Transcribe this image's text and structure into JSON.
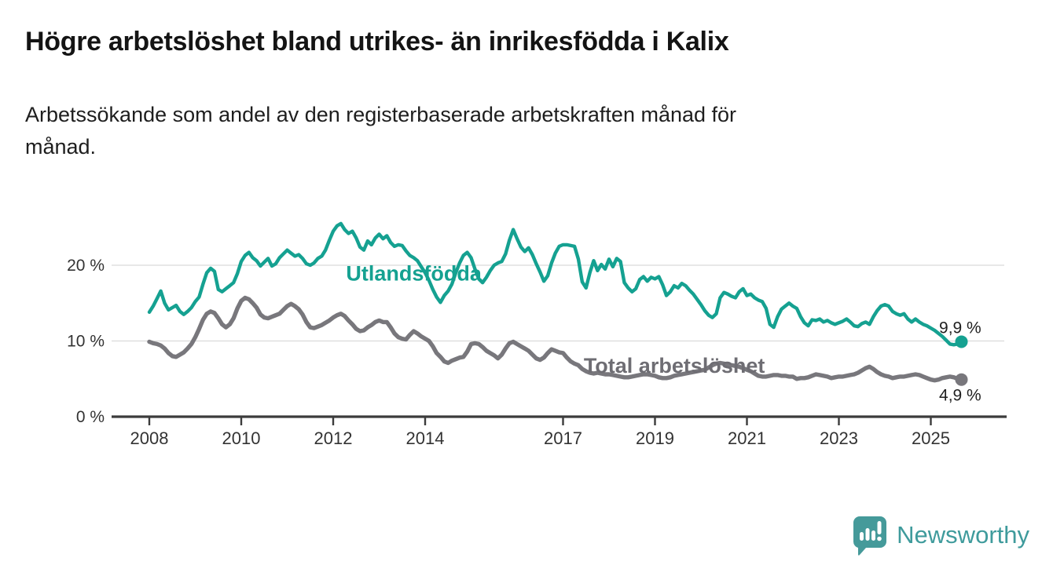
{
  "page": {
    "title": "Högre arbetslöshet bland utrikes- än inrikesfödda i Kalix",
    "subtitle_lines": [
      "Arbetssökande som andel av den registerbaserade arbetskraften månad för",
      "månad."
    ]
  },
  "chart_data": {
    "type": "line",
    "title": "Högre arbetslöshet bland utrikes- än inrikesfödda i Kalix",
    "subtitle": "Arbetssökande som andel av den registerbaserade arbetskraften månad för månad.",
    "x_unit": "monthly observations",
    "x_start_year": 2008,
    "points_per_year": 12,
    "xlim": [
      2007.2,
      2026.3
    ],
    "ylim": [
      0,
      27.5
    ],
    "grid": true,
    "x_ticks": [
      {
        "value": 2008,
        "label": "2008"
      },
      {
        "value": 2010,
        "label": "2010"
      },
      {
        "value": 2012,
        "label": "2012"
      },
      {
        "value": 2014,
        "label": "2014"
      },
      {
        "value": 2017,
        "label": "2017"
      },
      {
        "value": 2019,
        "label": "2019"
      },
      {
        "value": 2021,
        "label": "2021"
      },
      {
        "value": 2023,
        "label": "2023"
      },
      {
        "value": 2025,
        "label": "2025"
      }
    ],
    "y_ticks": [
      {
        "value": 0,
        "label": "0 %"
      },
      {
        "value": 10,
        "label": "10 %"
      },
      {
        "value": 20,
        "label": "20 %"
      }
    ],
    "series": [
      {
        "id": "utlandsfodda",
        "name": "Utlandsfödda",
        "color": "#15A191",
        "line_width": 4.4,
        "end_dot": true,
        "end_value": 9.9,
        "end_value_label": "9,9 %",
        "values": [
          13.8,
          14.6,
          15.6,
          16.6,
          15.0,
          14.1,
          14.4,
          14.7,
          13.9,
          13.5,
          13.9,
          14.4,
          15.2,
          15.8,
          17.5,
          19.0,
          19.6,
          19.2,
          16.8,
          16.5,
          16.9,
          17.3,
          17.7,
          18.9,
          20.5,
          21.3,
          21.7,
          21.0,
          20.6,
          19.9,
          20.4,
          20.9,
          19.9,
          20.2,
          21.0,
          21.5,
          22.0,
          21.6,
          21.2,
          21.4,
          20.9,
          20.2,
          20.0,
          20.3,
          20.9,
          21.2,
          22.0,
          23.3,
          24.5,
          25.2,
          25.5,
          24.7,
          24.2,
          24.5,
          23.6,
          22.4,
          22.0,
          23.2,
          22.7,
          23.6,
          24.1,
          23.5,
          23.9,
          23.0,
          22.5,
          22.7,
          22.6,
          21.9,
          21.3,
          21.0,
          20.6,
          19.8,
          19.0,
          18.0,
          16.8,
          15.8,
          15.1,
          16.0,
          16.6,
          17.5,
          19.0,
          20.3,
          21.3,
          21.7,
          21.0,
          19.5,
          18.2,
          17.7,
          18.4,
          19.3,
          20.0,
          20.3,
          20.5,
          21.5,
          23.3,
          24.7,
          23.5,
          22.4,
          21.8,
          22.3,
          21.4,
          20.2,
          19.1,
          17.9,
          18.6,
          20.3,
          21.6,
          22.5,
          22.7,
          22.7,
          22.6,
          22.5,
          20.8,
          17.8,
          17.0,
          19.0,
          20.6,
          19.3,
          20.1,
          19.5,
          20.8,
          19.8,
          20.9,
          20.5,
          17.7,
          17.0,
          16.5,
          16.9,
          18.1,
          18.5,
          17.9,
          18.4,
          18.2,
          18.5,
          17.4,
          16.0,
          16.5,
          17.3,
          17.0,
          17.6,
          17.3,
          16.7,
          16.2,
          15.5,
          14.8,
          14.0,
          13.4,
          13.1,
          13.6,
          15.7,
          16.4,
          16.2,
          15.9,
          15.7,
          16.5,
          16.9,
          16.0,
          16.2,
          15.7,
          15.4,
          15.2,
          14.3,
          12.2,
          11.8,
          13.2,
          14.2,
          14.6,
          15.0,
          14.6,
          14.3,
          13.2,
          12.4,
          12.0,
          12.8,
          12.7,
          12.9,
          12.5,
          12.7,
          12.4,
          12.2,
          12.4,
          12.6,
          12.9,
          12.5,
          12.0,
          11.9,
          12.3,
          12.5,
          12.2,
          13.2,
          14.0,
          14.6,
          14.8,
          14.6,
          13.9,
          13.6,
          13.4,
          13.6,
          12.9,
          12.5,
          12.9,
          12.5,
          12.2,
          12.0,
          11.7,
          11.4,
          11.0,
          10.6,
          10.1,
          9.6,
          9.5,
          9.6,
          9.9
        ]
      },
      {
        "id": "total",
        "name": "Total arbetslöshet",
        "color": "#78777C",
        "line_width": 5.4,
        "end_dot": true,
        "end_value": 4.9,
        "end_value_label": "4,9 %",
        "values": [
          9.9,
          9.7,
          9.6,
          9.4,
          9.0,
          8.4,
          8.0,
          7.9,
          8.2,
          8.5,
          9.0,
          9.6,
          10.5,
          11.6,
          12.8,
          13.6,
          13.9,
          13.7,
          13.0,
          12.2,
          11.8,
          12.2,
          13.0,
          14.3,
          15.3,
          15.7,
          15.5,
          15.0,
          14.4,
          13.5,
          13.1,
          13.0,
          13.2,
          13.4,
          13.6,
          14.1,
          14.6,
          14.9,
          14.6,
          14.2,
          13.5,
          12.5,
          11.8,
          11.7,
          11.9,
          12.1,
          12.4,
          12.7,
          13.1,
          13.4,
          13.6,
          13.3,
          12.7,
          12.2,
          11.6,
          11.3,
          11.4,
          11.8,
          12.1,
          12.5,
          12.7,
          12.5,
          12.5,
          11.8,
          11.0,
          10.5,
          10.3,
          10.2,
          10.8,
          11.3,
          11.0,
          10.6,
          10.3,
          10.0,
          9.3,
          8.4,
          7.9,
          7.3,
          7.1,
          7.4,
          7.6,
          7.8,
          7.9,
          8.6,
          9.6,
          9.7,
          9.6,
          9.2,
          8.7,
          8.4,
          8.1,
          7.7,
          8.2,
          9.0,
          9.7,
          9.9,
          9.6,
          9.3,
          9.0,
          8.7,
          8.2,
          7.7,
          7.5,
          7.8,
          8.4,
          8.9,
          8.7,
          8.5,
          8.4,
          7.8,
          7.3,
          7.0,
          6.8,
          6.3,
          6.0,
          5.8,
          5.7,
          5.8,
          5.7,
          5.6,
          5.6,
          5.5,
          5.4,
          5.3,
          5.2,
          5.2,
          5.3,
          5.4,
          5.5,
          5.6,
          5.6,
          5.5,
          5.4,
          5.2,
          5.1,
          5.1,
          5.2,
          5.4,
          5.5,
          5.6,
          5.7,
          5.8,
          5.9,
          6.0,
          6.1,
          6.2,
          6.5,
          6.8,
          7.0,
          7.1,
          7.0,
          6.9,
          6.8,
          6.7,
          6.6,
          6.4,
          6.2,
          6.0,
          5.7,
          5.4,
          5.3,
          5.3,
          5.4,
          5.5,
          5.5,
          5.4,
          5.4,
          5.3,
          5.3,
          5.0,
          5.1,
          5.1,
          5.2,
          5.4,
          5.6,
          5.5,
          5.4,
          5.3,
          5.1,
          5.2,
          5.3,
          5.3,
          5.4,
          5.5,
          5.6,
          5.8,
          6.1,
          6.4,
          6.6,
          6.3,
          5.9,
          5.6,
          5.4,
          5.3,
          5.1,
          5.2,
          5.3,
          5.3,
          5.4,
          5.5,
          5.6,
          5.5,
          5.3,
          5.1,
          4.9,
          4.8,
          4.9,
          5.1,
          5.2,
          5.3,
          5.2,
          5.0,
          4.9
        ]
      }
    ],
    "annotations": [
      {
        "id": "series-label-utlandsfodda",
        "text": "Utlandsfödda",
        "x": 2012.28,
        "y": 18.0,
        "color": "#15A191",
        "font_size": 27,
        "bold": true
      },
      {
        "id": "series-label-total",
        "text": "Total arbetslöshet",
        "x": 2017.45,
        "y": 5.8,
        "color": "#6E6D73",
        "font_size": 27,
        "bold": true
      },
      {
        "id": "end-value-utlandsfodda",
        "text": "9,9 %",
        "x": 2025.18,
        "y": 11.05,
        "color": "#1f1f1f",
        "font_size": 21,
        "bold": false
      },
      {
        "id": "end-value-total",
        "text": "4,9 %",
        "x": 2025.18,
        "y": 2.1,
        "color": "#1f1f1f",
        "font_size": 21,
        "bold": false
      }
    ],
    "legend_position": "inline-labels",
    "colors": {
      "grid": "#DBDBDB",
      "axis": "#3C3C3C",
      "tick_label": "#333333"
    }
  },
  "branding": {
    "name": "Newsworthy",
    "color": "#3F9B9C",
    "icon": "bar-chart-speech-bubble-icon"
  }
}
